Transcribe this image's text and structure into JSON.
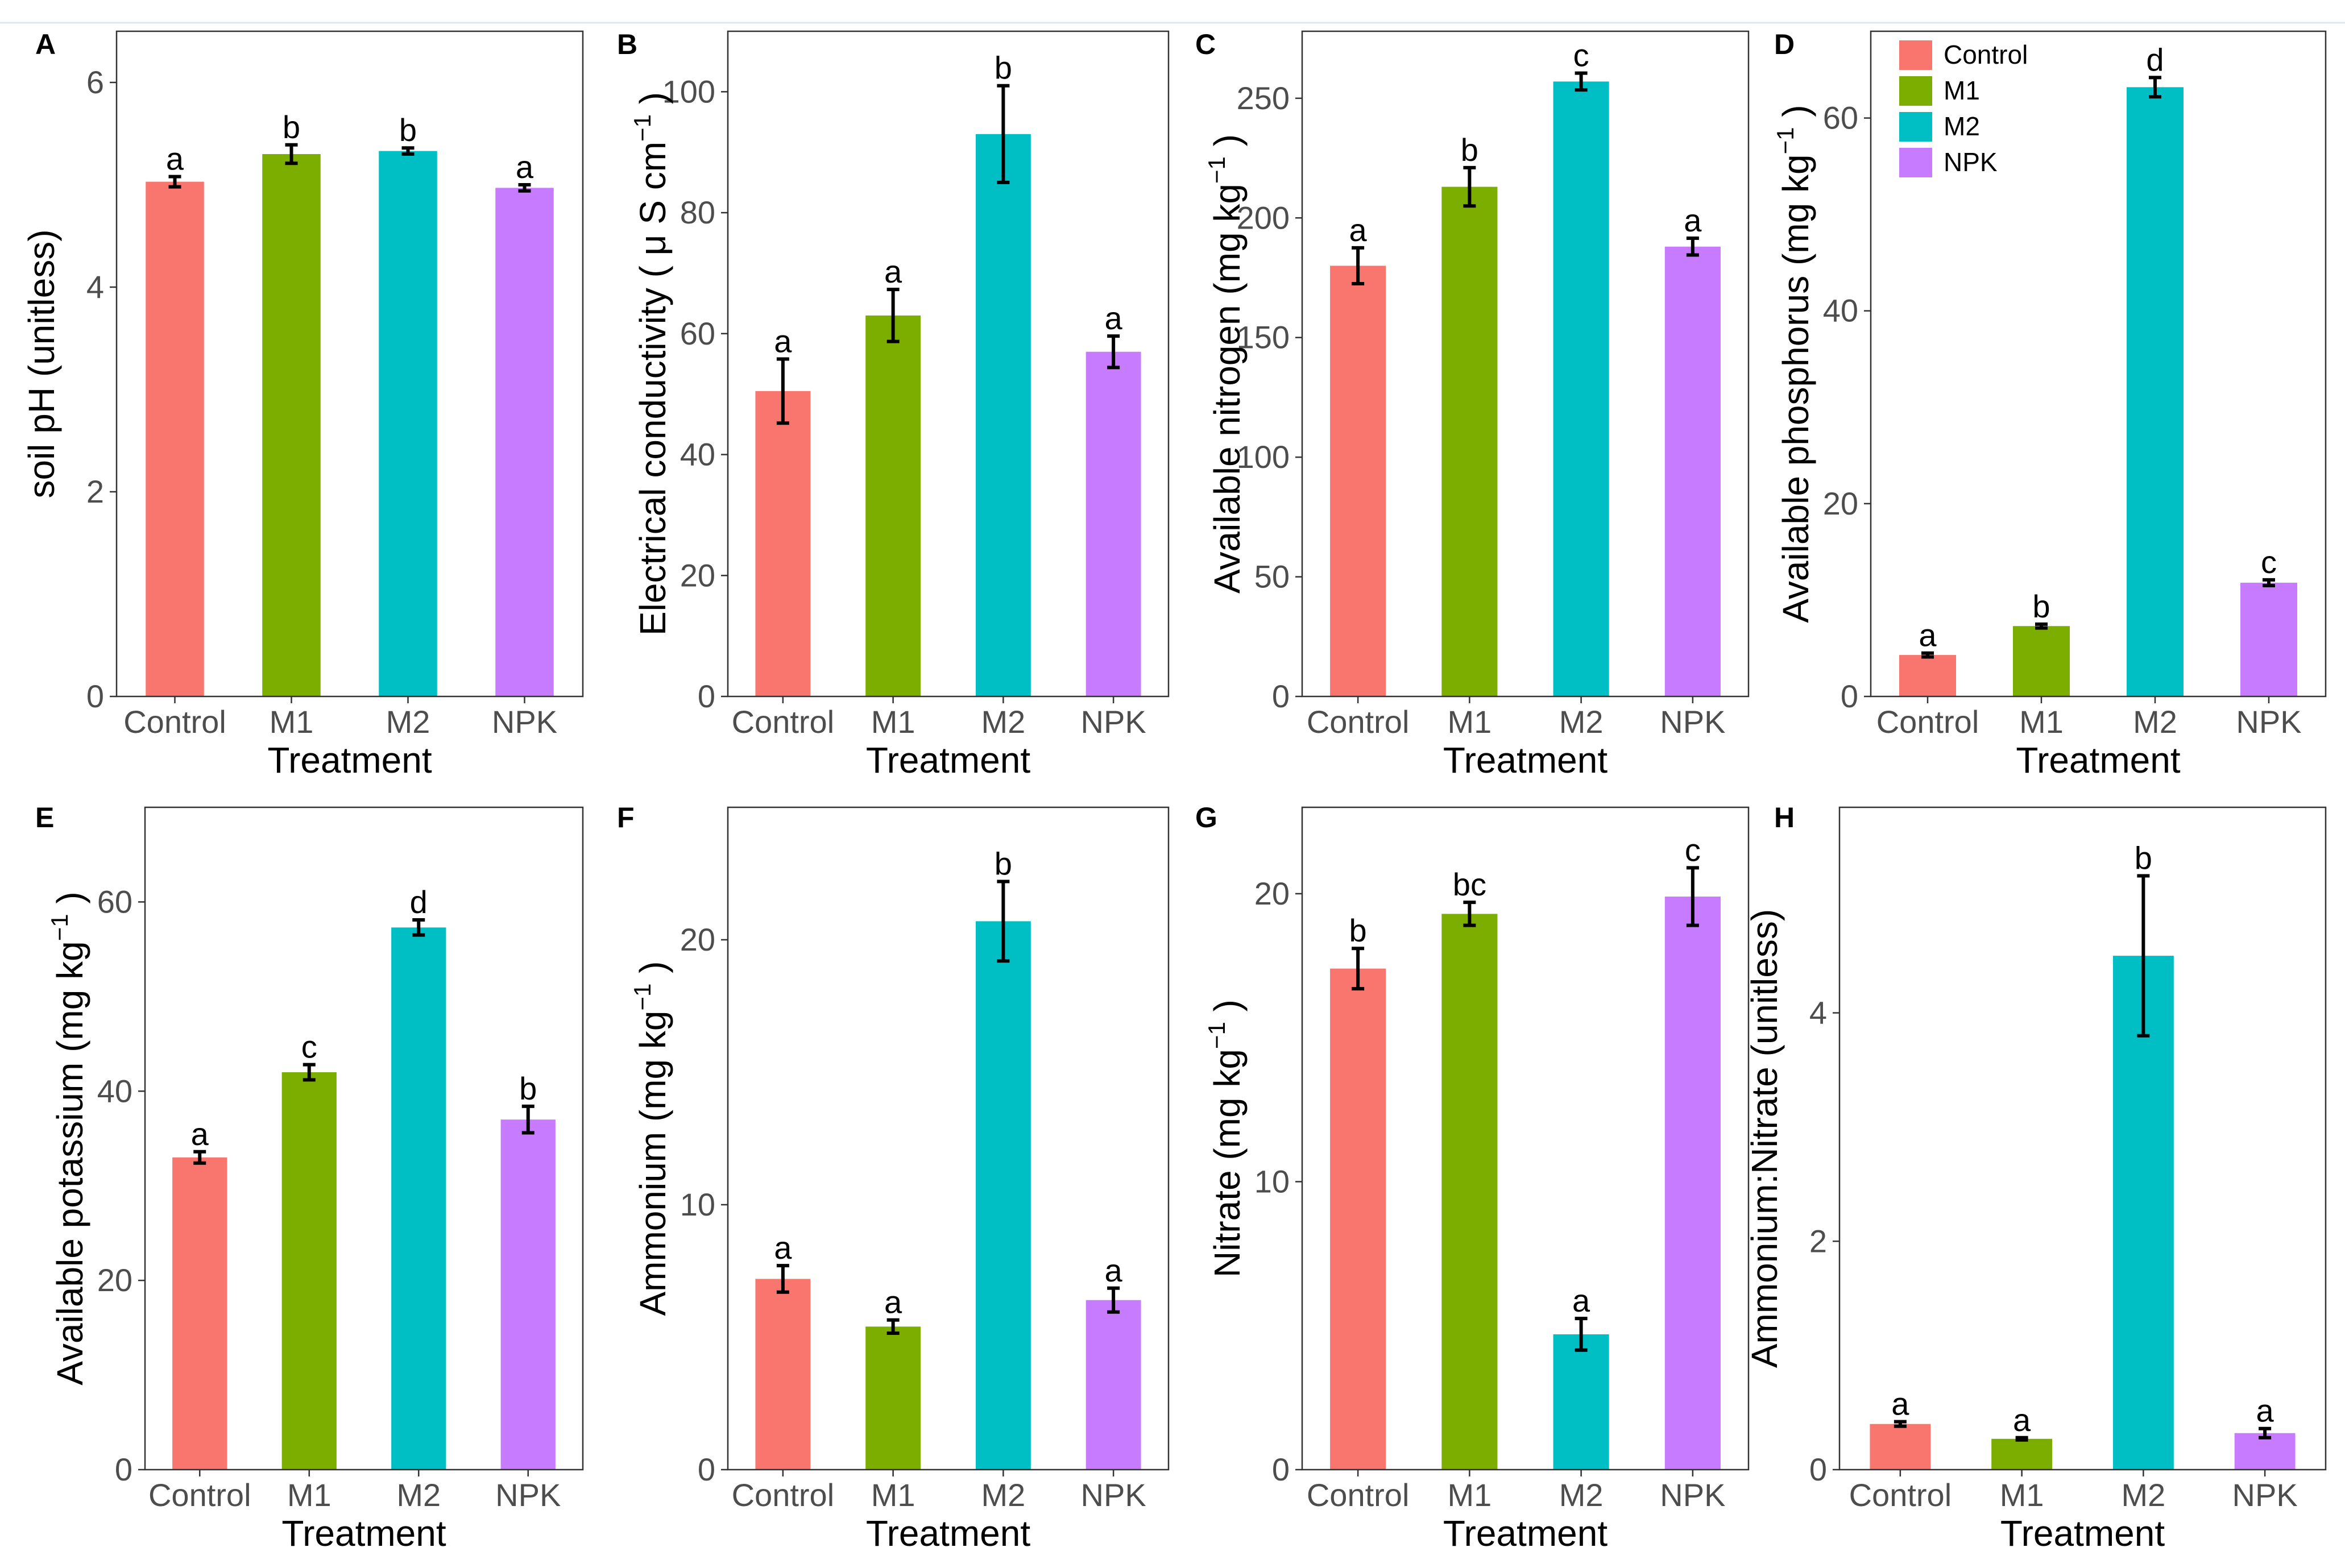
{
  "colors": {
    "Control": "#F8766D",
    "M1": "#7CAE00",
    "M2": "#00BFC4",
    "NPK": "#C77CFF"
  },
  "legend": {
    "entries": [
      "Control",
      "M1",
      "M2",
      "NPK"
    ]
  },
  "chart_data": [
    {
      "id": "A",
      "type": "bar",
      "panel_label": "A",
      "xlabel": "Treatment",
      "ylabel": "soil pH (unitless)",
      "categories": [
        "Control",
        "M1",
        "M2",
        "NPK"
      ],
      "values": [
        5.03,
        5.3,
        5.33,
        4.97
      ],
      "errors": [
        0.05,
        0.09,
        0.03,
        0.03
      ],
      "letters": [
        "a",
        "b",
        "b",
        "a"
      ],
      "ylim": [
        0,
        6.5
      ],
      "yticks": [
        0,
        2,
        4,
        6
      ],
      "ytick_labels": [
        "0",
        "2",
        "4",
        "6"
      ]
    },
    {
      "id": "B",
      "type": "bar",
      "panel_label": "B",
      "xlabel": "Treatment",
      "ylabel": "Electrical conductivity ( μ S  cm",
      "ylabel_sup": "−1",
      "ylabel_end": " )",
      "categories": [
        "Control",
        "M1",
        "M2",
        "NPK"
      ],
      "values": [
        50.5,
        63.0,
        93.0,
        57.0
      ],
      "errors": [
        5.3,
        4.3,
        8.0,
        2.6
      ],
      "letters": [
        "a",
        "a",
        "b",
        "a"
      ],
      "ylim": [
        0,
        110
      ],
      "yticks": [
        0,
        20,
        40,
        60,
        80,
        100
      ],
      "ytick_labels": [
        "0",
        "20",
        "40",
        "60",
        "80",
        "100"
      ]
    },
    {
      "id": "C",
      "type": "bar",
      "panel_label": "C",
      "xlabel": "Treatment",
      "ylabel": "Available nitrogen (mg  kg",
      "ylabel_sup": "−1",
      "ylabel_end": " )",
      "categories": [
        "Control",
        "M1",
        "M2",
        "NPK"
      ],
      "values": [
        180,
        213,
        257,
        188
      ],
      "errors": [
        7.5,
        8.0,
        3.5,
        3.5
      ],
      "letters": [
        "a",
        "b",
        "c",
        "a"
      ],
      "ylim": [
        0,
        278
      ],
      "yticks": [
        0,
        50,
        100,
        150,
        200,
        250
      ],
      "ytick_labels": [
        "0",
        "50",
        "100",
        "150",
        "200",
        "250"
      ]
    },
    {
      "id": "D",
      "type": "bar",
      "panel_label": "D",
      "xlabel": "Treatment",
      "ylabel": "Available phosphorus (mg  kg",
      "ylabel_sup": "−1",
      "ylabel_end": " )",
      "categories": [
        "Control",
        "M1",
        "M2",
        "NPK"
      ],
      "values": [
        4.3,
        7.3,
        63.2,
        11.8
      ],
      "errors": [
        0.2,
        0.2,
        1.0,
        0.3
      ],
      "letters": [
        "a",
        "b",
        "d",
        "c"
      ],
      "ylim": [
        0,
        69
      ],
      "yticks": [
        0,
        20,
        40,
        60
      ],
      "ytick_labels": [
        "0",
        "20",
        "40",
        "60"
      ],
      "legend": "top-left"
    },
    {
      "id": "E",
      "type": "bar",
      "panel_label": "E",
      "xlabel": "Treatment",
      "ylabel": "Available potassium (mg  kg",
      "ylabel_sup": "−1",
      "ylabel_end": " )",
      "categories": [
        "Control",
        "M1",
        "M2",
        "NPK"
      ],
      "values": [
        33.0,
        42.0,
        57.3,
        37.0
      ],
      "errors": [
        0.6,
        0.8,
        0.8,
        1.4
      ],
      "letters": [
        "a",
        "c",
        "d",
        "b"
      ],
      "ylim": [
        0,
        70
      ],
      "yticks": [
        0,
        20,
        40,
        60
      ],
      "ytick_labels": [
        "0",
        "20",
        "40",
        "60"
      ]
    },
    {
      "id": "F",
      "type": "bar",
      "panel_label": "F",
      "xlabel": "Treatment",
      "ylabel": "Ammonium (mg  kg",
      "ylabel_sup": "−1",
      "ylabel_end": " )",
      "categories": [
        "Control",
        "M1",
        "M2",
        "NPK"
      ],
      "values": [
        7.2,
        5.4,
        20.7,
        6.4
      ],
      "errors": [
        0.5,
        0.25,
        1.5,
        0.45
      ],
      "letters": [
        "a",
        "a",
        "b",
        "a"
      ],
      "ylim": [
        0,
        25
      ],
      "yticks": [
        0,
        10,
        20
      ],
      "ytick_labels": [
        "0",
        "10",
        "20"
      ]
    },
    {
      "id": "G",
      "type": "bar",
      "panel_label": "G",
      "xlabel": "Treatment",
      "ylabel": "Nitrate (mg  kg",
      "ylabel_sup": "−1",
      "ylabel_end": " )",
      "categories": [
        "Control",
        "M1",
        "M2",
        "NPK"
      ],
      "values": [
        17.4,
        19.3,
        4.7,
        19.9
      ],
      "errors": [
        0.7,
        0.4,
        0.55,
        1.0
      ],
      "letters": [
        "b",
        "bc",
        "a",
        "c"
      ],
      "ylim": [
        0,
        23
      ],
      "yticks": [
        0,
        10,
        20
      ],
      "ytick_labels": [
        "0",
        "10",
        "20"
      ]
    },
    {
      "id": "H",
      "type": "bar",
      "panel_label": "H",
      "xlabel": "Treatment",
      "ylabel": "Ammonium:Nitrate (unitless)",
      "categories": [
        "Control",
        "M1",
        "M2",
        "NPK"
      ],
      "values": [
        0.4,
        0.27,
        4.5,
        0.32
      ],
      "errors": [
        0.02,
        0.01,
        0.7,
        0.04
      ],
      "letters": [
        "a",
        "a",
        "b",
        "a"
      ],
      "ylim": [
        0,
        5.8
      ],
      "yticks": [
        0,
        2,
        4
      ],
      "ytick_labels": [
        "0",
        "2",
        "4"
      ]
    }
  ]
}
